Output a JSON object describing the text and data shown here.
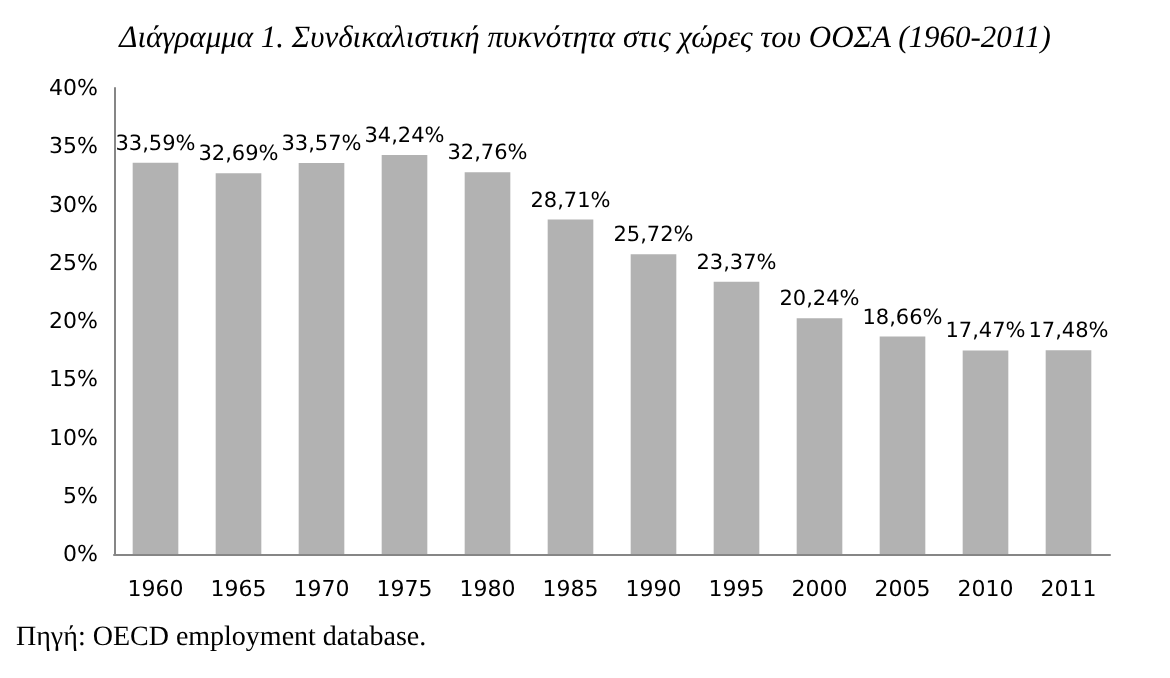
{
  "chart_data": {
    "type": "bar",
    "title": "Διάγραμμα 1. Συνδικαλιστική πυκνότητα στις χώρες του ΟΟΣΑ (1960-2011)",
    "categories": [
      "1960",
      "1965",
      "1970",
      "1975",
      "1980",
      "1985",
      "1990",
      "1995",
      "2000",
      "2005",
      "2010",
      "2011"
    ],
    "values": [
      33.59,
      32.69,
      33.57,
      34.24,
      32.76,
      28.71,
      25.72,
      23.37,
      20.24,
      18.66,
      17.47,
      17.48
    ],
    "value_labels": [
      "33,59%",
      "32,69%",
      "33,57%",
      "34,24%",
      "32,76%",
      "28,71%",
      "25,72%",
      "23,37%",
      "20,24%",
      "18,66%",
      "17,47%",
      "17,48%"
    ],
    "color": "#b2b2b2",
    "ylim": [
      0,
      40
    ],
    "yticks": [
      {
        "value": 0,
        "label": "0%"
      },
      {
        "value": 5,
        "label": "5%"
      },
      {
        "value": 10,
        "label": "10%"
      },
      {
        "value": 15,
        "label": "15%"
      },
      {
        "value": 20,
        "label": "20%"
      },
      {
        "value": 25,
        "label": "25%"
      },
      {
        "value": 30,
        "label": "30%"
      },
      {
        "value": 35,
        "label": "35%"
      },
      {
        "value": 40,
        "label": "40%"
      }
    ],
    "grid": false,
    "annotations": [
      "Πηγή: OECD employment database."
    ]
  }
}
